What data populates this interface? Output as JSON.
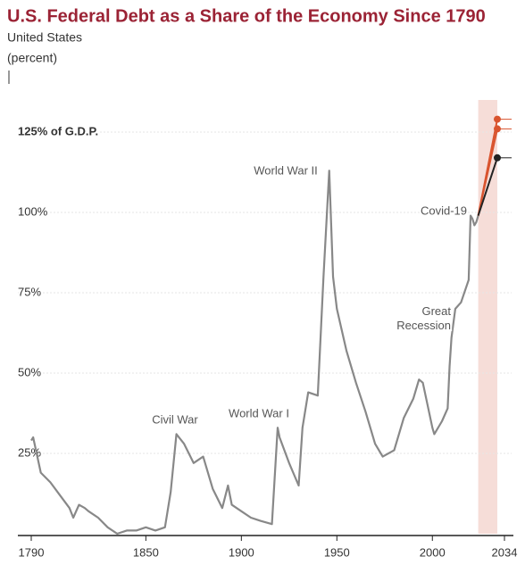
{
  "chart_data": {
    "type": "line",
    "title": "U.S. Federal Debt as a Share of the Economy Since 1790",
    "subtitle": "United States",
    "unit_label": "(percent)",
    "xlim": [
      1790,
      2034
    ],
    "ylim": [
      0,
      130
    ],
    "xticks": [
      1790,
      1850,
      1900,
      1950,
      2000,
      2034
    ],
    "yticks": [
      0,
      {
        "value": 25,
        "label": "25%"
      },
      {
        "value": 50,
        "label": "50%"
      },
      {
        "value": 75,
        "label": "75%"
      },
      {
        "value": 100,
        "label": "100%"
      },
      {
        "value": 125,
        "label": "125% of G.D.P."
      }
    ],
    "grid": true,
    "projection_span": [
      2024,
      2034
    ],
    "projection_color": "#f6ddd8",
    "series": [
      {
        "color": "#888888",
        "x": [
          1790,
          1791,
          1795,
          1800,
          1805,
          1810,
          1812,
          1815,
          1818,
          1820,
          1825,
          1830,
          1835,
          1840,
          1845,
          1850,
          1855,
          1860,
          1863,
          1866,
          1870,
          1875,
          1880,
          1885,
          1890,
          1893,
          1895,
          1900,
          1905,
          1910,
          1916,
          1919,
          1920,
          1925,
          1930,
          1932,
          1935,
          1940,
          1943,
          1946,
          1948,
          1950,
          1955,
          1960,
          1965,
          1970,
          1974,
          1980,
          1985,
          1990,
          1993,
          1995,
          2000,
          2001,
          2005,
          2008,
          2009,
          2010,
          2012,
          2015,
          2019,
          2020,
          2021,
          2022,
          2023,
          2024
        ],
        "values": [
          29,
          30,
          19,
          16,
          12,
          8,
          5,
          9,
          8,
          7,
          5,
          2,
          0,
          1,
          1,
          2,
          1,
          2,
          13,
          31,
          28,
          22,
          24,
          14,
          8,
          15,
          9,
          7,
          5,
          4,
          3,
          33,
          30,
          22,
          15,
          33,
          44,
          43,
          80,
          113,
          80,
          70,
          57,
          47,
          38,
          28,
          24,
          26,
          36,
          42,
          48,
          47,
          33,
          31,
          35,
          39,
          52,
          61,
          70,
          72,
          79,
          99,
          98,
          96,
          97,
          99
        ]
      },
      {
        "color": "#d9542f",
        "x": [
          2024,
          2034
        ],
        "values": [
          99,
          129
        ]
      },
      {
        "color": "#d9542f",
        "x": [
          2024,
          2034
        ],
        "values": [
          99,
          126
        ]
      },
      {
        "color": "#222222",
        "x": [
          2024,
          2034
        ],
        "values": [
          99,
          117
        ]
      }
    ],
    "annotations": [
      "Civil War",
      "World War I",
      "World War II",
      "Great Recession",
      "Covid-19"
    ]
  }
}
